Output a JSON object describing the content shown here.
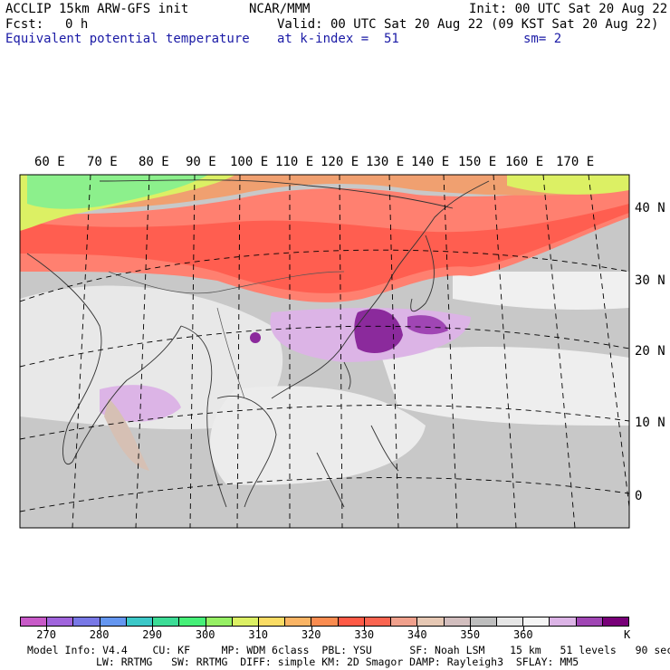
{
  "header": {
    "model": "ACCLIP 15km ARW-GFS init",
    "org": "NCAR/MMM",
    "init": "Init: 00 UTC Sat 20 Aug 22",
    "fcst_label": "Fcst:",
    "fcst_value": "0 h",
    "valid": "Valid: 00 UTC Sat 20 Aug 22 (09 KST Sat 20 Aug 22)",
    "field": "Equivalent potential temperature",
    "level": "at k-index =  51",
    "smoothing": "sm= 2"
  },
  "map": {
    "lon_labels": [
      "60 E",
      "70 E",
      "80 E",
      "90 E",
      "100 E",
      "110 E",
      "120 E",
      "130 E",
      "140 E",
      "150 E",
      "160 E",
      "170 E"
    ],
    "lat_labels": [
      "40 N",
      "30 N",
      "20 N",
      "10 N",
      "0"
    ],
    "colors": {
      "background": "#c8c8c8",
      "low_band": "#8cf08c",
      "warm_band": "#ff5e50",
      "purple_core": "#8b2a9c",
      "light_purple": "#dcb4e6"
    }
  },
  "colorbar": {
    "labels": [
      "270",
      "280",
      "290",
      "300",
      "310",
      "320",
      "330",
      "340",
      "350",
      "360"
    ],
    "unit": "K",
    "colors": [
      "#c85ac8",
      "#a064dc",
      "#7878e6",
      "#6496f0",
      "#3cc8c8",
      "#3cdc96",
      "#46f078",
      "#96f064",
      "#dcf064",
      "#fadc64",
      "#fab464",
      "#fa8c50",
      "#ff5a46",
      "#fa6450",
      "#f0a08c",
      "#e6c8b4",
      "#d2bebe",
      "#bebebe",
      "#e6e6e6",
      "#f5f5f5",
      "#dcb4e6",
      "#a046b4",
      "#780078"
    ]
  },
  "footer": {
    "line1": "Model Info: V4.4    CU: KF     MP: WDM 6class  PBL: YSU      SF: Noah LSM    15 km   51 levels   90 sec",
    "line2": "LW: RRTMG   SW: RRTMG  DIFF: simple KM: 2D Smagor DAMP: Rayleigh3  SFLAY: MM5"
  }
}
